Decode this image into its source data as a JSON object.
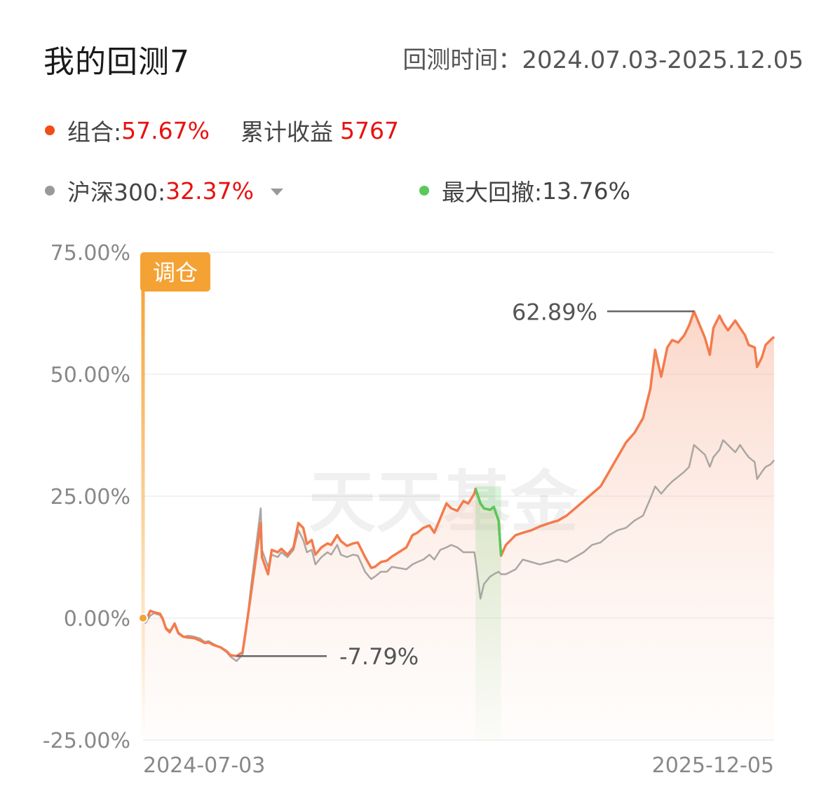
{
  "header": {
    "title": "我的回测7",
    "period_label": "回测时间：",
    "period_value": "2024.07.03-2025.12.05"
  },
  "summary": {
    "portfolio_label": "组合:",
    "portfolio_return": "57.67%",
    "cumulative_label": "累计收益",
    "cumulative_value": "5767",
    "benchmark_label": "沪深300:",
    "benchmark_return": "32.37%",
    "drawdown_label": "最大回撤:",
    "drawdown_value": "13.76%",
    "portfolio_color": "#f04e18",
    "benchmark_color": "#999999",
    "drawdown_color": "#5ac85a"
  },
  "chart_data": {
    "type": "line",
    "x_start": "2024-07-03",
    "x_end": "2025-12-05",
    "xtick_labels": [
      "2024-07-03",
      "2025-12-05"
    ],
    "ylim": [
      -25,
      75
    ],
    "y_ticks": [
      75,
      50,
      25,
      0,
      -25
    ],
    "y_tick_labels": [
      "75.00%",
      "50.00%",
      "25.00%",
      "0.00%",
      "-25.00%"
    ],
    "grid": true,
    "series": [
      {
        "name": "组合",
        "color": "#f47b4c",
        "points": [
          [
            "2024-07-03",
            0.0
          ],
          [
            "2024-07-05",
            -0.6
          ],
          [
            "2024-07-09",
            1.5
          ],
          [
            "2024-07-12",
            1.2
          ],
          [
            "2024-07-17",
            0.9
          ],
          [
            "2024-07-19",
            0.0
          ],
          [
            "2024-07-22",
            -2.2
          ],
          [
            "2024-07-25",
            -2.9
          ],
          [
            "2024-07-29",
            -1.1
          ],
          [
            "2024-08-01",
            -3.0
          ],
          [
            "2024-08-05",
            -3.8
          ],
          [
            "2024-08-09",
            -4.0
          ],
          [
            "2024-08-14",
            -4.1
          ],
          [
            "2024-08-19",
            -4.6
          ],
          [
            "2024-08-23",
            -5.1
          ],
          [
            "2024-08-26",
            -5.0
          ],
          [
            "2024-08-30",
            -5.5
          ],
          [
            "2024-09-05",
            -6.0
          ],
          [
            "2024-09-10",
            -6.8
          ],
          [
            "2024-09-13",
            -7.6
          ],
          [
            "2024-09-18",
            -7.79
          ],
          [
            "2024-09-23",
            -7.0
          ],
          [
            "2024-09-26",
            -2.0
          ],
          [
            "2024-09-30",
            5.0
          ],
          [
            "2024-10-08",
            19.5
          ],
          [
            "2024-10-09",
            12.5
          ],
          [
            "2024-10-14",
            9.0
          ],
          [
            "2024-10-17",
            14.0
          ],
          [
            "2024-10-22",
            13.5
          ],
          [
            "2024-10-25",
            14.2
          ],
          [
            "2024-10-30",
            13.0
          ],
          [
            "2024-11-04",
            14.5
          ],
          [
            "2024-11-08",
            19.5
          ],
          [
            "2024-11-12",
            18.5
          ],
          [
            "2024-11-15",
            15.2
          ],
          [
            "2024-11-19",
            16.0
          ],
          [
            "2024-11-22",
            13.0
          ],
          [
            "2024-11-27",
            14.5
          ],
          [
            "2024-12-02",
            15.3
          ],
          [
            "2024-12-05",
            15.0
          ],
          [
            "2024-12-10",
            17.0
          ],
          [
            "2024-12-13",
            15.8
          ],
          [
            "2024-12-18",
            14.8
          ],
          [
            "2024-12-23",
            15.3
          ],
          [
            "2024-12-27",
            15.5
          ],
          [
            "2025-01-02",
            12.5
          ],
          [
            "2025-01-07",
            10.3
          ],
          [
            "2025-01-10",
            10.5
          ],
          [
            "2025-01-15",
            11.5
          ],
          [
            "2025-01-20",
            11.8
          ],
          [
            "2025-01-24",
            12.6
          ],
          [
            "2025-02-05",
            14.5
          ],
          [
            "2025-02-10",
            17.0
          ],
          [
            "2025-02-14",
            17.5
          ],
          [
            "2025-02-19",
            18.5
          ],
          [
            "2025-02-24",
            19.0
          ],
          [
            "2025-02-28",
            17.5
          ],
          [
            "2025-03-05",
            20.5
          ],
          [
            "2025-03-10",
            23.5
          ],
          [
            "2025-03-14",
            22.5
          ],
          [
            "2025-03-19",
            22.0
          ],
          [
            "2025-03-24",
            24.0
          ],
          [
            "2025-03-28",
            23.5
          ],
          [
            "2025-04-02",
            25.5
          ],
          [
            "2025-04-03",
            26.5
          ],
          [
            "2025-04-07",
            23.5
          ],
          [
            "2025-04-10",
            22.5
          ],
          [
            "2025-04-15",
            22.2
          ],
          [
            "2025-04-18",
            22.8
          ],
          [
            "2025-04-22",
            20.0
          ],
          [
            "2025-04-24",
            12.8
          ],
          [
            "2025-04-28",
            15.0
          ],
          [
            "2025-05-06",
            17.0
          ],
          [
            "2025-05-12",
            17.5
          ],
          [
            "2025-05-19",
            18.0
          ],
          [
            "2025-05-26",
            18.8
          ],
          [
            "2025-06-03",
            19.5
          ],
          [
            "2025-06-10",
            20.0
          ],
          [
            "2025-06-17",
            21.0
          ],
          [
            "2025-06-24",
            22.5
          ],
          [
            "2025-07-01",
            24.0
          ],
          [
            "2025-07-08",
            25.5
          ],
          [
            "2025-07-15",
            27.0
          ],
          [
            "2025-07-22",
            30.0
          ],
          [
            "2025-07-29",
            33.0
          ],
          [
            "2025-08-05",
            36.0
          ],
          [
            "2025-08-12",
            38.0
          ],
          [
            "2025-08-19",
            41.0
          ],
          [
            "2025-08-25",
            47.0
          ],
          [
            "2025-08-29",
            55.0
          ],
          [
            "2025-09-03",
            49.5
          ],
          [
            "2025-09-08",
            55.5
          ],
          [
            "2025-09-12",
            57.0
          ],
          [
            "2025-09-17",
            56.5
          ],
          [
            "2025-09-22",
            58.0
          ],
          [
            "2025-09-26",
            60.0
          ],
          [
            "2025-09-30",
            62.89
          ],
          [
            "2025-10-09",
            57.5
          ],
          [
            "2025-10-13",
            54.0
          ],
          [
            "2025-10-16",
            59.5
          ],
          [
            "2025-10-21",
            62.0
          ],
          [
            "2025-10-24",
            60.5
          ],
          [
            "2025-10-28",
            59.0
          ],
          [
            "2025-11-03",
            61.0
          ],
          [
            "2025-11-07",
            59.5
          ],
          [
            "2025-11-11",
            58.0
          ],
          [
            "2025-11-14",
            56.0
          ],
          [
            "2025-11-19",
            55.5
          ],
          [
            "2025-11-21",
            51.5
          ],
          [
            "2025-11-25",
            53.5
          ],
          [
            "2025-11-28",
            56.0
          ],
          [
            "2025-12-02",
            57.0
          ],
          [
            "2025-12-05",
            57.67
          ]
        ]
      },
      {
        "name": "沪深300",
        "color": "#aaa6a4",
        "points": [
          [
            "2024-07-03",
            0.0
          ],
          [
            "2024-07-05",
            -1.0
          ],
          [
            "2024-07-09",
            0.5
          ],
          [
            "2024-07-12",
            1.0
          ],
          [
            "2024-07-17",
            0.6
          ],
          [
            "2024-07-19",
            -0.2
          ],
          [
            "2024-07-22",
            -2.0
          ],
          [
            "2024-07-25",
            -2.6
          ],
          [
            "2024-07-29",
            -1.4
          ],
          [
            "2024-08-01",
            -3.2
          ],
          [
            "2024-08-05",
            -3.9
          ],
          [
            "2024-08-09",
            -3.6
          ],
          [
            "2024-08-14",
            -3.8
          ],
          [
            "2024-08-19",
            -4.2
          ],
          [
            "2024-08-23",
            -4.9
          ],
          [
            "2024-08-26",
            -4.7
          ],
          [
            "2024-08-30",
            -5.3
          ],
          [
            "2024-09-05",
            -6.1
          ],
          [
            "2024-09-10",
            -7.0
          ],
          [
            "2024-09-13",
            -7.9
          ],
          [
            "2024-09-18",
            -8.8
          ],
          [
            "2024-09-23",
            -7.5
          ],
          [
            "2024-09-26",
            -2.5
          ],
          [
            "2024-09-30",
            6.5
          ],
          [
            "2024-10-08",
            22.5
          ],
          [
            "2024-10-09",
            14.0
          ],
          [
            "2024-10-14",
            10.5
          ],
          [
            "2024-10-17",
            13.0
          ],
          [
            "2024-10-22",
            12.5
          ],
          [
            "2024-10-25",
            13.5
          ],
          [
            "2024-10-30",
            12.5
          ],
          [
            "2024-11-04",
            14.0
          ],
          [
            "2024-11-08",
            18.0
          ],
          [
            "2024-11-12",
            16.0
          ],
          [
            "2024-11-15",
            13.5
          ],
          [
            "2024-11-19",
            14.0
          ],
          [
            "2024-11-22",
            11.0
          ],
          [
            "2024-11-27",
            12.5
          ],
          [
            "2024-12-02",
            13.5
          ],
          [
            "2024-12-05",
            13.0
          ],
          [
            "2024-12-10",
            15.0
          ],
          [
            "2024-12-13",
            13.0
          ],
          [
            "2024-12-18",
            12.5
          ],
          [
            "2024-12-23",
            13.0
          ],
          [
            "2024-12-27",
            12.8
          ],
          [
            "2025-01-02",
            9.5
          ],
          [
            "2025-01-07",
            8.0
          ],
          [
            "2025-01-10",
            8.5
          ],
          [
            "2025-01-15",
            9.5
          ],
          [
            "2025-01-20",
            9.5
          ],
          [
            "2025-01-24",
            10.5
          ],
          [
            "2025-02-05",
            10.0
          ],
          [
            "2025-02-10",
            11.0
          ],
          [
            "2025-02-14",
            11.5
          ],
          [
            "2025-02-19",
            12.0
          ],
          [
            "2025-02-24",
            13.0
          ],
          [
            "2025-02-28",
            12.0
          ],
          [
            "2025-03-05",
            14.0
          ],
          [
            "2025-03-10",
            14.5
          ],
          [
            "2025-03-14",
            15.0
          ],
          [
            "2025-03-19",
            14.5
          ],
          [
            "2025-03-24",
            13.5
          ],
          [
            "2025-03-28",
            13.5
          ],
          [
            "2025-04-02",
            13.5
          ],
          [
            "2025-04-03",
            12.0
          ],
          [
            "2025-04-07",
            4.0
          ],
          [
            "2025-04-10",
            7.0
          ],
          [
            "2025-04-15",
            8.5
          ],
          [
            "2025-04-18",
            9.0
          ],
          [
            "2025-04-22",
            9.5
          ],
          [
            "2025-04-24",
            9.0
          ],
          [
            "2025-04-28",
            9.0
          ],
          [
            "2025-05-06",
            10.0
          ],
          [
            "2025-05-12",
            12.0
          ],
          [
            "2025-05-19",
            11.5
          ],
          [
            "2025-05-26",
            11.0
          ],
          [
            "2025-06-03",
            11.5
          ],
          [
            "2025-06-10",
            12.0
          ],
          [
            "2025-06-17",
            11.5
          ],
          [
            "2025-06-24",
            12.5
          ],
          [
            "2025-07-01",
            13.5
          ],
          [
            "2025-07-08",
            15.0
          ],
          [
            "2025-07-15",
            15.5
          ],
          [
            "2025-07-22",
            17.0
          ],
          [
            "2025-07-29",
            18.0
          ],
          [
            "2025-08-05",
            18.5
          ],
          [
            "2025-08-12",
            20.0
          ],
          [
            "2025-08-19",
            21.0
          ],
          [
            "2025-08-25",
            24.5
          ],
          [
            "2025-08-29",
            27.0
          ],
          [
            "2025-09-03",
            25.5
          ],
          [
            "2025-09-08",
            27.0
          ],
          [
            "2025-09-12",
            28.0
          ],
          [
            "2025-09-17",
            29.0
          ],
          [
            "2025-09-22",
            30.0
          ],
          [
            "2025-09-26",
            31.0
          ],
          [
            "2025-09-30",
            35.5
          ],
          [
            "2025-10-09",
            33.5
          ],
          [
            "2025-10-13",
            31.0
          ],
          [
            "2025-10-16",
            33.0
          ],
          [
            "2025-10-21",
            34.5
          ],
          [
            "2025-10-24",
            36.5
          ],
          [
            "2025-10-28",
            35.5
          ],
          [
            "2025-11-03",
            34.0
          ],
          [
            "2025-11-07",
            35.5
          ],
          [
            "2025-11-11",
            34.0
          ],
          [
            "2025-11-14",
            33.0
          ],
          [
            "2025-11-19",
            32.0
          ],
          [
            "2025-11-21",
            28.5
          ],
          [
            "2025-11-25",
            30.0
          ],
          [
            "2025-11-28",
            31.0
          ],
          [
            "2025-12-02",
            31.5
          ],
          [
            "2025-12-05",
            32.37
          ]
        ]
      }
    ],
    "max_drawdown_period": [
      "2025-04-03",
      "2025-04-24"
    ],
    "max_drawdown_color": "#5ac85a",
    "rebalance_marker": {
      "date": "2024-07-03",
      "label": "调仓",
      "color": "#f5a234"
    },
    "annotations": [
      {
        "date": "2025-09-30",
        "value": 62.89,
        "label": "62.89%"
      },
      {
        "date": "2024-09-18",
        "value": -7.79,
        "label": "-7.79%"
      }
    ],
    "watermark": "天天基金"
  }
}
